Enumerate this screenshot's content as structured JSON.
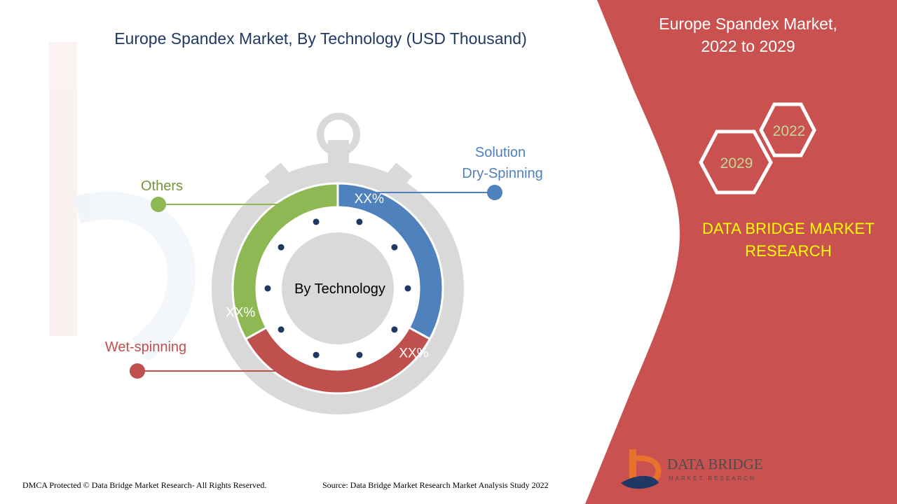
{
  "title": "Europe Spandex Market, By Technology (USD Thousand)",
  "side_panel": {
    "title_line1": "Europe Spandex Market,",
    "title_line2": "2022 to 2029",
    "year_start": "2022",
    "year_end": "2029",
    "brand_line1": "DATA BRIDGE MARKET",
    "brand_line2": "RESEARCH"
  },
  "logo": {
    "name": "DATA BRIDGE",
    "tagline": "MARKET RESEARCH"
  },
  "footer": {
    "copyright": "DMCA Protected © Data Bridge Market Research- All Rights Reserved.",
    "source": "Source: Data Bridge Market Research Market Analysis Study 2022"
  },
  "colors": {
    "panel": "#c9514f",
    "green": "#8db853",
    "blue": "#4f81bd",
    "red": "#c0504d",
    "gray": "#d9d9d9",
    "title": "#1f3864",
    "yellow": "#ffff00"
  },
  "chart_data": {
    "type": "pie",
    "style": "donut inside stopwatch",
    "center_label": "By Technology",
    "categories": [
      "Solution Dry-Spinning",
      "Wet-spinning",
      "Others"
    ],
    "series": [
      {
        "name": "",
        "values": [
          0.33,
          0.34,
          0.33
        ],
        "labels": [
          "XX%",
          "XX%",
          "XX%"
        ],
        "colors": [
          "#4f81bd",
          "#c0504d",
          "#8db853"
        ]
      }
    ],
    "callouts": [
      {
        "line1": "Solution",
        "line2": "Dry-Spinning",
        "color": "#4f81bd"
      },
      {
        "line1": "Wet-spinning",
        "line2": "",
        "color": "#c0504d"
      },
      {
        "line1": "Others",
        "line2": "",
        "color": "#8db853"
      }
    ]
  }
}
